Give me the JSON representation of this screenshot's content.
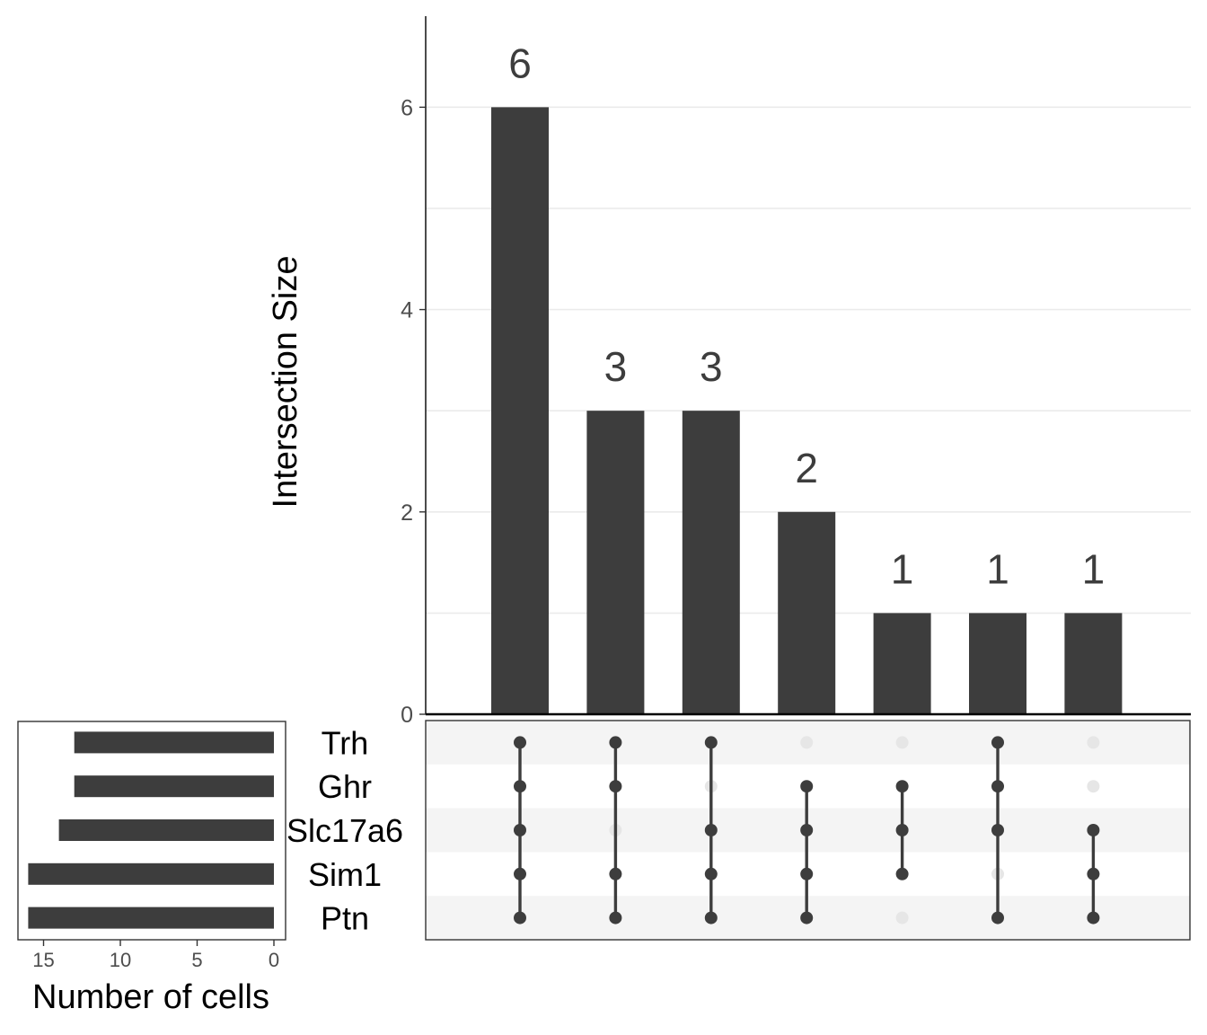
{
  "chart_data": {
    "type": "upset",
    "sets": [
      "Trh",
      "Ghr",
      "Slc17a6",
      "Sim1",
      "Ptn"
    ],
    "intersections": [
      {
        "size": 6,
        "members": [
          "Trh",
          "Ghr",
          "Slc17a6",
          "Sim1",
          "Ptn"
        ]
      },
      {
        "size": 3,
        "members": [
          "Trh",
          "Ghr",
          "Sim1",
          "Ptn"
        ]
      },
      {
        "size": 3,
        "members": [
          "Trh",
          "Slc17a6",
          "Sim1",
          "Ptn"
        ]
      },
      {
        "size": 2,
        "members": [
          "Ghr",
          "Slc17a6",
          "Sim1",
          "Ptn"
        ]
      },
      {
        "size": 1,
        "members": [
          "Ghr",
          "Slc17a6",
          "Sim1"
        ]
      },
      {
        "size": 1,
        "members": [
          "Trh",
          "Ghr",
          "Slc17a6",
          "Ptn"
        ]
      },
      {
        "size": 1,
        "members": [
          "Slc17a6",
          "Sim1",
          "Ptn"
        ]
      }
    ],
    "intersection_axis": {
      "ylabel": "Intersection Size",
      "ylim": [
        0,
        6.9
      ],
      "ticks": [
        0,
        2,
        4,
        6
      ],
      "tick_labels": [
        "0",
        "2",
        "4",
        "6"
      ]
    },
    "set_sizes": [
      {
        "set": "Trh",
        "value": 13
      },
      {
        "set": "Ghr",
        "value": 13
      },
      {
        "set": "Slc17a6",
        "value": 14
      },
      {
        "set": "Sim1",
        "value": 16
      },
      {
        "set": "Ptn",
        "value": 16
      }
    ],
    "set_size_axis": {
      "xlabel": "Number of cells",
      "xlim": [
        0,
        17.1
      ],
      "ticks": [
        15,
        10,
        5,
        0
      ],
      "tick_labels": [
        "15",
        "10",
        "5",
        "0"
      ],
      "reversed": true
    },
    "colors": {
      "bar": "#3d3d3d",
      "dot_active": "#3d3d3d",
      "dot_inactive": "#e6e6e6",
      "stripe": "#f4f4f4",
      "grid": "#ebebeb"
    }
  }
}
